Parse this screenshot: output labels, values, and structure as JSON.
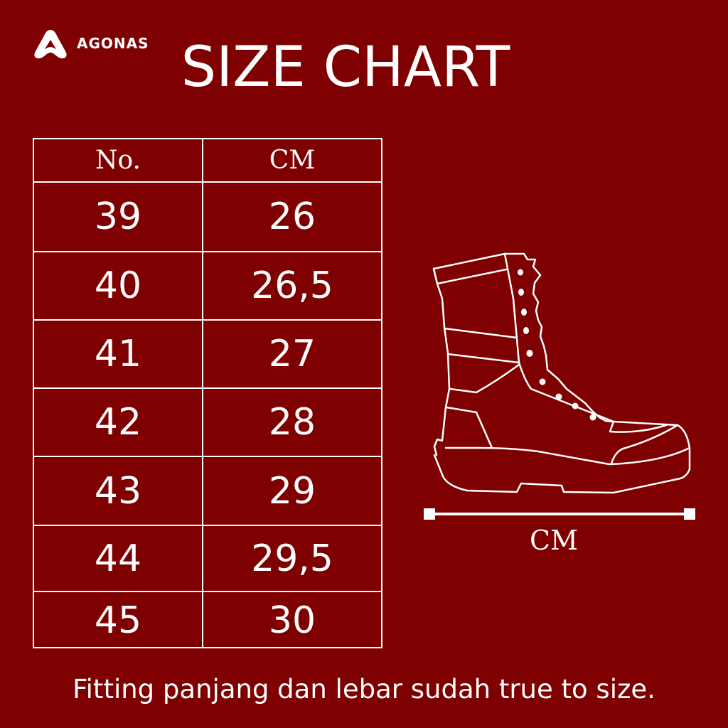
{
  "brand": {
    "name": "AGONAS",
    "icon": "agonas-logo-icon"
  },
  "title": "SIZE CHART",
  "colors": {
    "background": "#7f0000",
    "foreground": "#ffffff"
  },
  "table": {
    "headers": [
      "No.",
      "CM"
    ],
    "rows": [
      [
        "39",
        "26"
      ],
      [
        "40",
        "26,5"
      ],
      [
        "41",
        "27"
      ],
      [
        "42",
        "28"
      ],
      [
        "43",
        "29"
      ],
      [
        "44",
        "29,5"
      ],
      [
        "45",
        "30"
      ]
    ]
  },
  "illustration": {
    "icon": "boot-outline-icon",
    "measure_label": "CM"
  },
  "footer": "Fitting panjang dan lebar sudah true to size."
}
